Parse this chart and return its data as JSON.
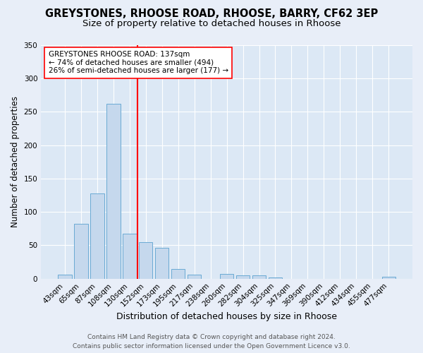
{
  "title_line1": "GREYSTONES, RHOOSE ROAD, RHOOSE, BARRY, CF62 3EP",
  "title_line2": "Size of property relative to detached houses in Rhoose",
  "xlabel": "Distribution of detached houses by size in Rhoose",
  "ylabel": "Number of detached properties",
  "categories": [
    "43sqm",
    "65sqm",
    "87sqm",
    "108sqm",
    "130sqm",
    "152sqm",
    "173sqm",
    "195sqm",
    "217sqm",
    "238sqm",
    "260sqm",
    "282sqm",
    "304sqm",
    "325sqm",
    "347sqm",
    "369sqm",
    "390sqm",
    "412sqm",
    "434sqm",
    "455sqm",
    "477sqm"
  ],
  "values": [
    6,
    82,
    128,
    262,
    67,
    55,
    46,
    15,
    6,
    0,
    7,
    5,
    5,
    2,
    0,
    0,
    0,
    0,
    0,
    0,
    3
  ],
  "bar_color": "#c5d8ed",
  "bar_edge_color": "#6aaad4",
  "background_color": "#dce8f5",
  "grid_color": "#ffffff",
  "fig_background": "#e8eef8",
  "red_line_x": 4.5,
  "red_line_label": "GREYSTONES RHOOSE ROAD: 137sqm",
  "annotation_line2": "← 74% of detached houses are smaller (494)",
  "annotation_line3": "26% of semi-detached houses are larger (177) →",
  "ylim": [
    0,
    350
  ],
  "yticks": [
    0,
    50,
    100,
    150,
    200,
    250,
    300,
    350
  ],
  "footer_line1": "Contains HM Land Registry data © Crown copyright and database right 2024.",
  "footer_line2": "Contains public sector information licensed under the Open Government Licence v3.0.",
  "title_fontsize": 10.5,
  "subtitle_fontsize": 9.5,
  "xlabel_fontsize": 9,
  "ylabel_fontsize": 8.5,
  "tick_fontsize": 7.5,
  "annotation_fontsize": 7.5,
  "footer_fontsize": 6.5
}
